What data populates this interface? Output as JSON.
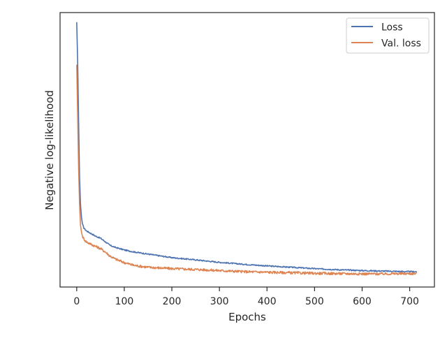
{
  "chart_data": {
    "type": "line",
    "title": "",
    "xlabel": "Epochs",
    "ylabel": "Negative log-likelihood",
    "xlim": [
      -35,
      752
    ],
    "ylim": [
      0,
      1
    ],
    "x_ticks": [
      0,
      100,
      200,
      300,
      400,
      500,
      600,
      700
    ],
    "x_tick_labels": [
      "0",
      "100",
      "200",
      "300",
      "400",
      "500",
      "600",
      "700"
    ],
    "y_ticks": [],
    "grid": false,
    "legend_position": "top-right",
    "y_axis_note": "no y tick labels are printed; y values are relative (0 = bottom of axes, 1 = top of axes)",
    "series": [
      {
        "name": "Loss",
        "color": "#4c72b0",
        "x": [
          0,
          2,
          4,
          6,
          8,
          10,
          12,
          15,
          20,
          30,
          40,
          50,
          60,
          70,
          80,
          100,
          120,
          150,
          200,
          250,
          300,
          350,
          400,
          450,
          500,
          550,
          600,
          650,
          700,
          715
        ],
        "y": [
          0.965,
          0.82,
          0.6,
          0.4,
          0.3,
          0.255,
          0.23,
          0.215,
          0.205,
          0.195,
          0.185,
          0.178,
          0.165,
          0.152,
          0.145,
          0.135,
          0.128,
          0.12,
          0.107,
          0.099,
          0.09,
          0.083,
          0.077,
          0.072,
          0.067,
          0.063,
          0.06,
          0.058,
          0.056,
          0.056
        ]
      },
      {
        "name": "Val. loss",
        "color": "#dd8452",
        "x": [
          0,
          2,
          4,
          6,
          8,
          10,
          12,
          15,
          20,
          30,
          40,
          50,
          60,
          70,
          80,
          100,
          120,
          150,
          200,
          250,
          300,
          350,
          400,
          450,
          500,
          550,
          600,
          650,
          700,
          715
        ],
        "y": [
          0.81,
          0.62,
          0.43,
          0.3,
          0.225,
          0.2,
          0.185,
          0.175,
          0.165,
          0.156,
          0.148,
          0.14,
          0.128,
          0.113,
          0.103,
          0.089,
          0.079,
          0.072,
          0.067,
          0.064,
          0.06,
          0.056,
          0.054,
          0.052,
          0.05,
          0.049,
          0.048,
          0.048,
          0.049,
          0.049
        ]
      }
    ]
  }
}
